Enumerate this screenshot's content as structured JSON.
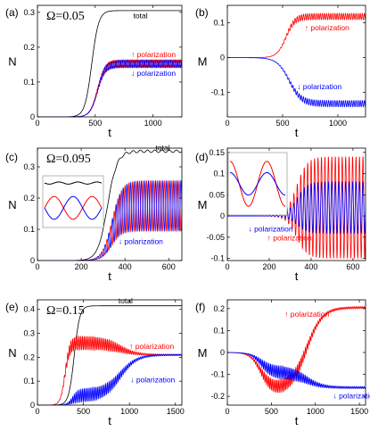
{
  "chart_data": [
    {
      "panel": "(a)",
      "type": "line",
      "omega_label": "Ω=0.05",
      "xlabel": "t",
      "ylabel": "N",
      "xlim": [
        0,
        1250
      ],
      "ylim": [
        0,
        0.32
      ],
      "xticks": [
        0,
        500,
        1000
      ],
      "yticks": [
        0,
        0.1,
        0.2,
        0.3
      ],
      "ytick_labels": [
        "0",
        "0.1",
        "0.2",
        "0.3"
      ],
      "series": [
        {
          "name": "total",
          "color": "#000000",
          "style": "sigmoid",
          "start": 0,
          "end": 0.305,
          "mid": 470,
          "width": 30,
          "osc": 0,
          "period": 20
        },
        {
          "name": "↑ polarization",
          "color": "#ff0000",
          "style": "sigmoid",
          "start": 0,
          "end": 0.153,
          "mid": 520,
          "width": 32,
          "osc": 0.011,
          "period": 19
        },
        {
          "name": "↓ polarization",
          "color": "#0000ff",
          "style": "sigmoid",
          "start": 0,
          "end": 0.152,
          "mid": 520,
          "width": 32,
          "osc": -0.011,
          "period": 19
        }
      ],
      "annotations": [
        {
          "text": "total",
          "color": "#000000",
          "x": 830,
          "y": 0.283
        },
        {
          "text": "↑ polarization",
          "color": "#ff0000",
          "x": 810,
          "y": 0.172
        },
        {
          "text": "↓ polarization",
          "color": "#0000ff",
          "x": 810,
          "y": 0.118
        }
      ]
    },
    {
      "panel": "(b)",
      "type": "line",
      "omega_label": "",
      "xlabel": "t",
      "ylabel": "M",
      "xlim": [
        0,
        1250
      ],
      "ylim": [
        -0.17,
        0.15
      ],
      "xticks": [
        0,
        500,
        1000
      ],
      "yticks": [
        -0.1,
        0,
        0.1
      ],
      "ytick_labels": [
        "-0.1",
        "0",
        "0.1"
      ],
      "series": [
        {
          "name": "↑ polarization",
          "color": "#ff0000",
          "style": "sigmoid",
          "start": 0,
          "end": 0.118,
          "mid": 530,
          "width": 40,
          "osc": 0.009,
          "period": 19
        },
        {
          "name": "↓ polarization",
          "color": "#0000ff",
          "style": "sigmoid",
          "start": 0,
          "end": -0.132,
          "mid": 560,
          "width": 55,
          "osc": 0.009,
          "period": 19
        }
      ],
      "annotations": [
        {
          "text": "↑ polarization",
          "color": "#ff0000",
          "x": 700,
          "y": 0.078
        },
        {
          "text": "↓ polarization",
          "color": "#0000ff",
          "x": 630,
          "y": -0.09
        }
      ]
    },
    {
      "panel": "(c)",
      "type": "line",
      "omega_label": "Ω=0.095",
      "xlabel": "t",
      "ylabel": "N",
      "xlim": [
        0,
        660
      ],
      "ylim": [
        0,
        0.36
      ],
      "xticks": [
        0,
        200,
        400,
        600
      ],
      "yticks": [
        0,
        0.1,
        0.2,
        0.3
      ],
      "ytick_labels": [
        "0",
        "0.1",
        "0.2",
        "0.3"
      ],
      "series": [
        {
          "name": "total",
          "color": "#000000",
          "style": "sigmoid",
          "start": 0,
          "end": 0.35,
          "mid": 320,
          "width": 22,
          "osc": 0.004,
          "period": 33
        },
        {
          "name": "↑ polarization",
          "color": "#ff0000",
          "style": "sigmoid",
          "start": 0,
          "end": 0.175,
          "mid": 340,
          "width": 22,
          "osc": 0.08,
          "period": 16.5
        },
        {
          "name": "↓ polarization",
          "color": "#0000ff",
          "style": "sigmoid",
          "start": 0,
          "end": 0.175,
          "mid": 340,
          "width": 22,
          "osc": -0.08,
          "period": 16.5
        }
      ],
      "annotations": [
        {
          "text": "total",
          "color": "#000000",
          "x": 540,
          "y": 0.353
        },
        {
          "text": "↓ polarization",
          "color": "#0000ff",
          "x": 370,
          "y": 0.053
        }
      ],
      "inset": {
        "color_up": "#ff0000",
        "color_down": "#0000ff",
        "color_total": "#000000"
      }
    },
    {
      "panel": "(d)",
      "type": "line",
      "omega_label": "",
      "xlabel": "t",
      "ylabel": "M",
      "xlim": [
        0,
        660
      ],
      "ylim": [
        -0.105,
        0.16
      ],
      "xticks": [
        0,
        200,
        400,
        600
      ],
      "yticks": [
        -0.1,
        -0.05,
        0,
        0.05,
        0.1,
        0.15
      ],
      "ytick_labels": [
        "-0.1",
        "-0.05",
        "0",
        "0.05",
        "0.1",
        "0.15"
      ],
      "series": [
        {
          "name": "↑ polarization",
          "color": "#ff0000",
          "style": "sigmoid",
          "start": 0,
          "end": 0.02,
          "mid": 330,
          "width": 25,
          "osc": 0.12,
          "period": 16.5
        },
        {
          "name": "↓ polarization",
          "color": "#0000ff",
          "style": "sigmoid",
          "start": 0,
          "end": 0.02,
          "mid": 330,
          "width": 25,
          "osc": 0.06,
          "period": 16.5
        }
      ],
      "annotations": [
        {
          "text": "↓ polarization",
          "color": "#0000ff",
          "x": 100,
          "y": -0.037
        },
        {
          "text": "↑ polarization",
          "color": "#ff0000",
          "x": 190,
          "y": -0.058
        }
      ],
      "inset": {
        "color_up": "#ff0000",
        "color_down": "#0000ff"
      }
    },
    {
      "panel": "(e)",
      "type": "line",
      "omega_label": "Ω=0.15",
      "xlabel": "t",
      "ylabel": "N",
      "xlim": [
        0,
        1570
      ],
      "ylim": [
        0,
        0.44
      ],
      "xticks": [
        0,
        500,
        1000,
        1500
      ],
      "yticks": [
        0,
        0.1,
        0.2,
        0.3,
        0.4
      ],
      "ytick_labels": [
        "0",
        "0.1",
        "0.2",
        "0.3",
        "0.4"
      ],
      "series": [
        {
          "name": "total",
          "color": "#000000",
          "style": "sigmoid",
          "start": 0,
          "end": 0.415,
          "mid": 400,
          "width": 30,
          "osc": 0,
          "period": 20
        },
        {
          "name": "↑ polarization",
          "color": "#ff0000",
          "style": "bump",
          "peak": 0.26,
          "plateau": 0.21,
          "rise_mid": 300,
          "rise_w": 25,
          "fall_mid": 900,
          "fall_w": 90,
          "osc": 0.028,
          "period": 18
        },
        {
          "name": "↓ polarization",
          "color": "#0000ff",
          "style": "late",
          "plateau": 0.21,
          "early": 0.04,
          "early_mid": 380,
          "early_w": 30,
          "late_mid": 900,
          "late_w": 90,
          "osc": 0.028,
          "period": 18
        }
      ],
      "annotations": [
        {
          "text": "total",
          "color": "#000000",
          "x": 880,
          "y": 0.425
        },
        {
          "text": "↑ polarization",
          "color": "#ff0000",
          "x": 1000,
          "y": 0.235
        },
        {
          "text": "↓ polarization",
          "color": "#0000ff",
          "x": 1010,
          "y": 0.095
        }
      ]
    },
    {
      "panel": "(f)",
      "type": "line",
      "omega_label": "",
      "xlabel": "t",
      "ylabel": "M",
      "xlim": [
        0,
        1570
      ],
      "ylim": [
        -0.24,
        0.24
      ],
      "xticks": [
        0,
        500,
        1000,
        1500
      ],
      "yticks": [
        -0.2,
        -0.1,
        0,
        0.1,
        0.2
      ],
      "ytick_labels": [
        "-0.2",
        "-0.1",
        "0",
        "0.1",
        "0.2"
      ],
      "series": [
        {
          "name": "↑ polarization",
          "color": "#ff0000",
          "style": "dipup",
          "dip": -0.17,
          "final": 0.205,
          "dip_mid": 380,
          "dip_w": 60,
          "rise_mid": 900,
          "rise_w": 90,
          "osc": 0.03,
          "period": 18
        },
        {
          "name": "↓ polarization",
          "color": "#0000ff",
          "style": "dipdown",
          "dip": -0.09,
          "final": -0.16,
          "dip_mid": 380,
          "dip_w": 60,
          "rise_mid": 900,
          "rise_w": 90,
          "osc": 0.03,
          "period": 18
        }
      ],
      "annotations": [
        {
          "text": "↑ polarization",
          "color": "#ff0000",
          "x": 650,
          "y": 0.163
        },
        {
          "text": "↓ polarization",
          "color": "#0000ff",
          "x": 1200,
          "y": -0.21
        }
      ]
    }
  ]
}
